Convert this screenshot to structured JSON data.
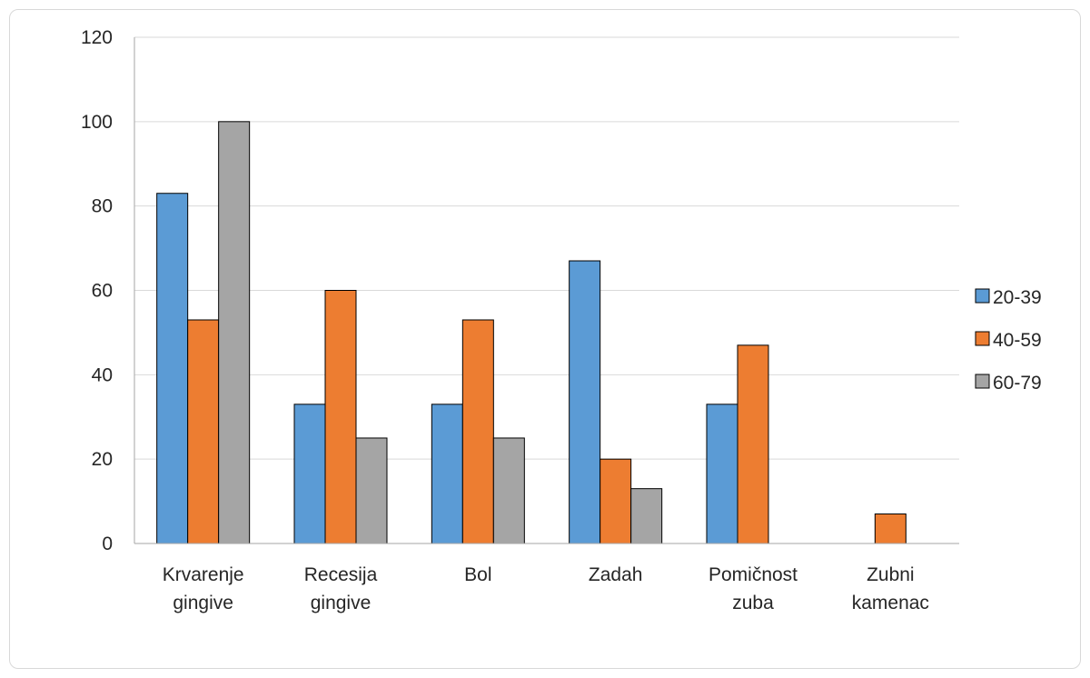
{
  "chart_data": {
    "type": "bar",
    "title": "",
    "xlabel": "",
    "ylabel": "",
    "ylim": [
      0,
      120
    ],
    "yticks": [
      0,
      20,
      40,
      60,
      80,
      100,
      120
    ],
    "grid": true,
    "legend_position": "right",
    "categories": [
      [
        "Krvarenje",
        "gingive"
      ],
      [
        "Recesija",
        "gingive"
      ],
      [
        "Bol"
      ],
      [
        "Zadah"
      ],
      [
        "Pomičnost",
        "zuba"
      ],
      [
        "Zubni",
        "kamenac"
      ]
    ],
    "series": [
      {
        "name": "20-39",
        "color": "#5B9BD5",
        "values": [
          83,
          33,
          33,
          67,
          33,
          0
        ]
      },
      {
        "name": "40-59",
        "color": "#ED7D31",
        "values": [
          53,
          60,
          53,
          20,
          47,
          7
        ]
      },
      {
        "name": "60-79",
        "color": "#A5A5A5",
        "values": [
          100,
          25,
          25,
          13,
          0,
          0
        ]
      }
    ]
  }
}
